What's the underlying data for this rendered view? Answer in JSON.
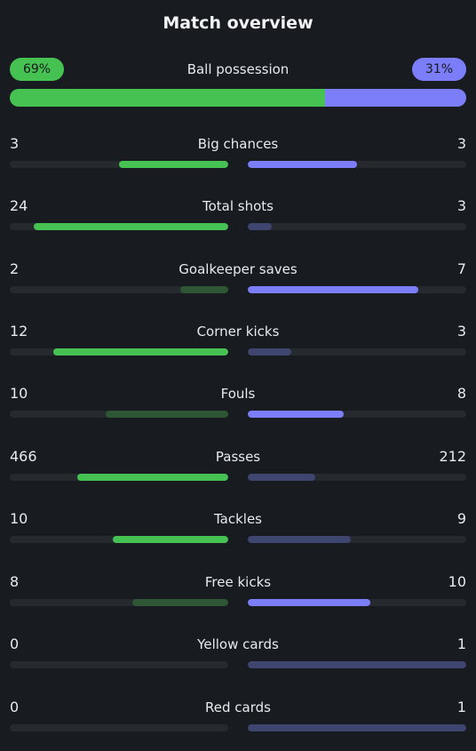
{
  "title": "Match overview",
  "possession": {
    "label": "Ball possession",
    "home": "69%",
    "away": "31%",
    "home_fraction": 0.69,
    "away_fraction": 0.31
  },
  "colors": {
    "home_strong": "#46c252",
    "home_weak": "#2e5534",
    "away_strong": "#7b7ef8",
    "away_weak": "#3e4670",
    "track": "#262a2f"
  },
  "stats": [
    {
      "label": "Big chances",
      "home": "3",
      "away": "3",
      "home_fill": 0.5,
      "away_fill": 0.5,
      "home_leads": true,
      "away_leads": true
    },
    {
      "label": "Total shots",
      "home": "24",
      "away": "3",
      "home_fill": 0.89,
      "away_fill": 0.11,
      "home_leads": true,
      "away_leads": false
    },
    {
      "label": "Goalkeeper saves",
      "home": "2",
      "away": "7",
      "home_fill": 0.22,
      "away_fill": 0.78,
      "home_leads": false,
      "away_leads": true
    },
    {
      "label": "Corner kicks",
      "home": "12",
      "away": "3",
      "home_fill": 0.8,
      "away_fill": 0.2,
      "home_leads": true,
      "away_leads": false
    },
    {
      "label": "Fouls",
      "home": "10",
      "away": "8",
      "home_fill": 0.56,
      "away_fill": 0.44,
      "home_leads": false,
      "away_leads": true
    },
    {
      "label": "Passes",
      "home": "466",
      "away": "212",
      "home_fill": 0.69,
      "away_fill": 0.31,
      "home_leads": true,
      "away_leads": false
    },
    {
      "label": "Tackles",
      "home": "10",
      "away": "9",
      "home_fill": 0.53,
      "away_fill": 0.47,
      "home_leads": true,
      "away_leads": false
    },
    {
      "label": "Free kicks",
      "home": "8",
      "away": "10",
      "home_fill": 0.44,
      "away_fill": 0.56,
      "home_leads": false,
      "away_leads": true
    },
    {
      "label": "Yellow cards",
      "home": "0",
      "away": "1",
      "home_fill": 0,
      "away_fill": 1,
      "home_leads": false,
      "away_leads": false
    },
    {
      "label": "Red cards",
      "home": "0",
      "away": "1",
      "home_fill": 0,
      "away_fill": 1,
      "home_leads": false,
      "away_leads": false
    }
  ]
}
